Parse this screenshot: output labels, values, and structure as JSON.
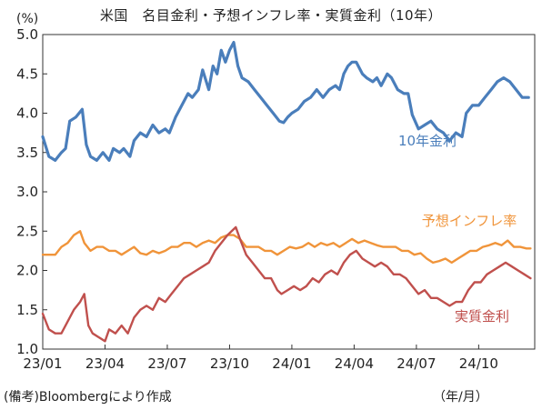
{
  "title": "米国　名目金利・予想インフレ率・実質金利（10年）",
  "footnote": "(備考)Bloombergにより作成",
  "chart_data": {
    "type": "line",
    "yunit": "(%)",
    "xunit": "（年/月）",
    "ylim": [
      1.0,
      5.0
    ],
    "yticks": [
      "1.0",
      "1.5",
      "2.0",
      "2.5",
      "3.0",
      "3.5",
      "4.0",
      "4.5",
      "5.0"
    ],
    "xlim": [
      0,
      23.7
    ],
    "xticks": [
      {
        "x": 0,
        "label": "23/01"
      },
      {
        "x": 3,
        "label": "23/04"
      },
      {
        "x": 6,
        "label": "23/07"
      },
      {
        "x": 9,
        "label": "23/10"
      },
      {
        "x": 12,
        "label": "24/01"
      },
      {
        "x": 15,
        "label": "24/04"
      },
      {
        "x": 18,
        "label": "24/07"
      },
      {
        "x": 21,
        "label": "24/10"
      }
    ],
    "grid": false,
    "legend": "inline labels",
    "series": [
      {
        "name": "10年金利",
        "color": "#4a7ebb",
        "points": [
          [
            0,
            3.7
          ],
          [
            0.3,
            3.45
          ],
          [
            0.6,
            3.4
          ],
          [
            0.9,
            3.5
          ],
          [
            1.1,
            3.55
          ],
          [
            1.3,
            3.9
          ],
          [
            1.6,
            3.95
          ],
          [
            1.9,
            4.05
          ],
          [
            2.1,
            3.6
          ],
          [
            2.3,
            3.45
          ],
          [
            2.6,
            3.4
          ],
          [
            2.9,
            3.5
          ],
          [
            3.2,
            3.4
          ],
          [
            3.4,
            3.55
          ],
          [
            3.7,
            3.5
          ],
          [
            3.9,
            3.55
          ],
          [
            4.2,
            3.45
          ],
          [
            4.4,
            3.65
          ],
          [
            4.7,
            3.75
          ],
          [
            5.0,
            3.7
          ],
          [
            5.3,
            3.85
          ],
          [
            5.6,
            3.75
          ],
          [
            5.9,
            3.8
          ],
          [
            6.1,
            3.75
          ],
          [
            6.4,
            3.95
          ],
          [
            6.7,
            4.1
          ],
          [
            7.0,
            4.25
          ],
          [
            7.2,
            4.2
          ],
          [
            7.5,
            4.3
          ],
          [
            7.7,
            4.55
          ],
          [
            8.0,
            4.3
          ],
          [
            8.2,
            4.6
          ],
          [
            8.4,
            4.5
          ],
          [
            8.6,
            4.8
          ],
          [
            8.8,
            4.65
          ],
          [
            9.0,
            4.8
          ],
          [
            9.2,
            4.9
          ],
          [
            9.4,
            4.6
          ],
          [
            9.6,
            4.45
          ],
          [
            9.9,
            4.4
          ],
          [
            10.2,
            4.3
          ],
          [
            10.5,
            4.2
          ],
          [
            10.8,
            4.1
          ],
          [
            11.1,
            4.0
          ],
          [
            11.4,
            3.9
          ],
          [
            11.6,
            3.88
          ],
          [
            11.8,
            3.95
          ],
          [
            12.0,
            4.0
          ],
          [
            12.3,
            4.05
          ],
          [
            12.6,
            4.15
          ],
          [
            12.9,
            4.2
          ],
          [
            13.2,
            4.3
          ],
          [
            13.5,
            4.2
          ],
          [
            13.8,
            4.3
          ],
          [
            14.1,
            4.35
          ],
          [
            14.3,
            4.3
          ],
          [
            14.5,
            4.5
          ],
          [
            14.7,
            4.6
          ],
          [
            14.9,
            4.65
          ],
          [
            15.1,
            4.65
          ],
          [
            15.4,
            4.5
          ],
          [
            15.6,
            4.45
          ],
          [
            15.9,
            4.4
          ],
          [
            16.1,
            4.45
          ],
          [
            16.3,
            4.35
          ],
          [
            16.6,
            4.5
          ],
          [
            16.8,
            4.45
          ],
          [
            17.1,
            4.3
          ],
          [
            17.4,
            4.25
          ],
          [
            17.6,
            4.25
          ],
          [
            17.8,
            3.98
          ],
          [
            18.1,
            3.8
          ],
          [
            18.4,
            3.85
          ],
          [
            18.7,
            3.9
          ],
          [
            19.0,
            3.8
          ],
          [
            19.3,
            3.75
          ],
          [
            19.6,
            3.65
          ],
          [
            19.9,
            3.75
          ],
          [
            20.2,
            3.7
          ],
          [
            20.4,
            4.0
          ],
          [
            20.7,
            4.1
          ],
          [
            21.0,
            4.1
          ],
          [
            21.3,
            4.2
          ],
          [
            21.6,
            4.3
          ],
          [
            21.9,
            4.4
          ],
          [
            22.2,
            4.45
          ],
          [
            22.5,
            4.4
          ],
          [
            22.8,
            4.3
          ],
          [
            23.1,
            4.2
          ],
          [
            23.4,
            4.2
          ]
        ]
      },
      {
        "name": "予想インフレ率",
        "color": "#f0943a",
        "points": [
          [
            0,
            2.2
          ],
          [
            0.3,
            2.2
          ],
          [
            0.6,
            2.2
          ],
          [
            0.9,
            2.3
          ],
          [
            1.2,
            2.35
          ],
          [
            1.5,
            2.45
          ],
          [
            1.8,
            2.5
          ],
          [
            2.0,
            2.35
          ],
          [
            2.3,
            2.25
          ],
          [
            2.6,
            2.3
          ],
          [
            2.9,
            2.3
          ],
          [
            3.2,
            2.25
          ],
          [
            3.5,
            2.25
          ],
          [
            3.8,
            2.2
          ],
          [
            4.1,
            2.25
          ],
          [
            4.4,
            2.3
          ],
          [
            4.7,
            2.22
          ],
          [
            5.0,
            2.2
          ],
          [
            5.3,
            2.25
          ],
          [
            5.6,
            2.22
          ],
          [
            5.9,
            2.25
          ],
          [
            6.2,
            2.3
          ],
          [
            6.5,
            2.3
          ],
          [
            6.8,
            2.35
          ],
          [
            7.1,
            2.35
          ],
          [
            7.4,
            2.3
          ],
          [
            7.7,
            2.35
          ],
          [
            8.0,
            2.38
          ],
          [
            8.3,
            2.35
          ],
          [
            8.6,
            2.42
          ],
          [
            8.9,
            2.45
          ],
          [
            9.2,
            2.45
          ],
          [
            9.5,
            2.4
          ],
          [
            9.8,
            2.3
          ],
          [
            10.1,
            2.3
          ],
          [
            10.4,
            2.3
          ],
          [
            10.7,
            2.25
          ],
          [
            11.0,
            2.25
          ],
          [
            11.3,
            2.2
          ],
          [
            11.6,
            2.25
          ],
          [
            11.9,
            2.3
          ],
          [
            12.2,
            2.28
          ],
          [
            12.5,
            2.3
          ],
          [
            12.8,
            2.35
          ],
          [
            13.1,
            2.3
          ],
          [
            13.4,
            2.35
          ],
          [
            13.7,
            2.32
          ],
          [
            14.0,
            2.35
          ],
          [
            14.3,
            2.3
          ],
          [
            14.6,
            2.35
          ],
          [
            14.9,
            2.4
          ],
          [
            15.2,
            2.35
          ],
          [
            15.5,
            2.38
          ],
          [
            15.8,
            2.35
          ],
          [
            16.1,
            2.32
          ],
          [
            16.4,
            2.3
          ],
          [
            16.7,
            2.3
          ],
          [
            17.0,
            2.3
          ],
          [
            17.3,
            2.25
          ],
          [
            17.6,
            2.25
          ],
          [
            17.9,
            2.2
          ],
          [
            18.2,
            2.22
          ],
          [
            18.5,
            2.15
          ],
          [
            18.8,
            2.1
          ],
          [
            19.1,
            2.12
          ],
          [
            19.4,
            2.15
          ],
          [
            19.7,
            2.1
          ],
          [
            20.0,
            2.15
          ],
          [
            20.3,
            2.2
          ],
          [
            20.6,
            2.25
          ],
          [
            20.9,
            2.25
          ],
          [
            21.2,
            2.3
          ],
          [
            21.5,
            2.32
          ],
          [
            21.8,
            2.35
          ],
          [
            22.1,
            2.32
          ],
          [
            22.4,
            2.38
          ],
          [
            22.7,
            2.3
          ],
          [
            23.0,
            2.3
          ],
          [
            23.3,
            2.28
          ],
          [
            23.5,
            2.28
          ]
        ]
      },
      {
        "name": "実質金利",
        "color": "#c0504d",
        "points": [
          [
            0,
            1.45
          ],
          [
            0.3,
            1.25
          ],
          [
            0.6,
            1.2
          ],
          [
            0.9,
            1.2
          ],
          [
            1.2,
            1.35
          ],
          [
            1.5,
            1.5
          ],
          [
            1.8,
            1.6
          ],
          [
            2.0,
            1.7
          ],
          [
            2.2,
            1.3
          ],
          [
            2.4,
            1.2
          ],
          [
            2.7,
            1.15
          ],
          [
            3.0,
            1.1
          ],
          [
            3.2,
            1.25
          ],
          [
            3.5,
            1.2
          ],
          [
            3.8,
            1.3
          ],
          [
            4.1,
            1.2
          ],
          [
            4.4,
            1.4
          ],
          [
            4.7,
            1.5
          ],
          [
            5.0,
            1.55
          ],
          [
            5.3,
            1.5
          ],
          [
            5.6,
            1.65
          ],
          [
            5.9,
            1.6
          ],
          [
            6.2,
            1.7
          ],
          [
            6.5,
            1.8
          ],
          [
            6.8,
            1.9
          ],
          [
            7.1,
            1.95
          ],
          [
            7.4,
            2.0
          ],
          [
            7.7,
            2.05
          ],
          [
            8.0,
            2.1
          ],
          [
            8.3,
            2.25
          ],
          [
            8.6,
            2.35
          ],
          [
            8.9,
            2.45
          ],
          [
            9.1,
            2.5
          ],
          [
            9.3,
            2.55
          ],
          [
            9.5,
            2.4
          ],
          [
            9.8,
            2.2
          ],
          [
            10.1,
            2.1
          ],
          [
            10.4,
            2.0
          ],
          [
            10.7,
            1.9
          ],
          [
            11.0,
            1.9
          ],
          [
            11.3,
            1.75
          ],
          [
            11.5,
            1.7
          ],
          [
            11.8,
            1.75
          ],
          [
            12.1,
            1.8
          ],
          [
            12.4,
            1.75
          ],
          [
            12.7,
            1.8
          ],
          [
            13.0,
            1.9
          ],
          [
            13.3,
            1.85
          ],
          [
            13.6,
            1.95
          ],
          [
            13.9,
            2.0
          ],
          [
            14.2,
            1.95
          ],
          [
            14.5,
            2.1
          ],
          [
            14.8,
            2.2
          ],
          [
            15.1,
            2.25
          ],
          [
            15.4,
            2.15
          ],
          [
            15.7,
            2.1
          ],
          [
            16.0,
            2.05
          ],
          [
            16.3,
            2.1
          ],
          [
            16.6,
            2.05
          ],
          [
            16.9,
            1.95
          ],
          [
            17.2,
            1.95
          ],
          [
            17.5,
            1.9
          ],
          [
            17.8,
            1.8
          ],
          [
            18.1,
            1.7
          ],
          [
            18.4,
            1.75
          ],
          [
            18.7,
            1.65
          ],
          [
            19.0,
            1.65
          ],
          [
            19.3,
            1.6
          ],
          [
            19.6,
            1.55
          ],
          [
            19.9,
            1.6
          ],
          [
            20.2,
            1.6
          ],
          [
            20.5,
            1.75
          ],
          [
            20.8,
            1.85
          ],
          [
            21.1,
            1.85
          ],
          [
            21.4,
            1.95
          ],
          [
            21.7,
            2.0
          ],
          [
            22.0,
            2.05
          ],
          [
            22.3,
            2.1
          ],
          [
            22.6,
            2.05
          ],
          [
            22.9,
            2.0
          ],
          [
            23.2,
            1.95
          ],
          [
            23.5,
            1.9
          ]
        ]
      }
    ]
  }
}
